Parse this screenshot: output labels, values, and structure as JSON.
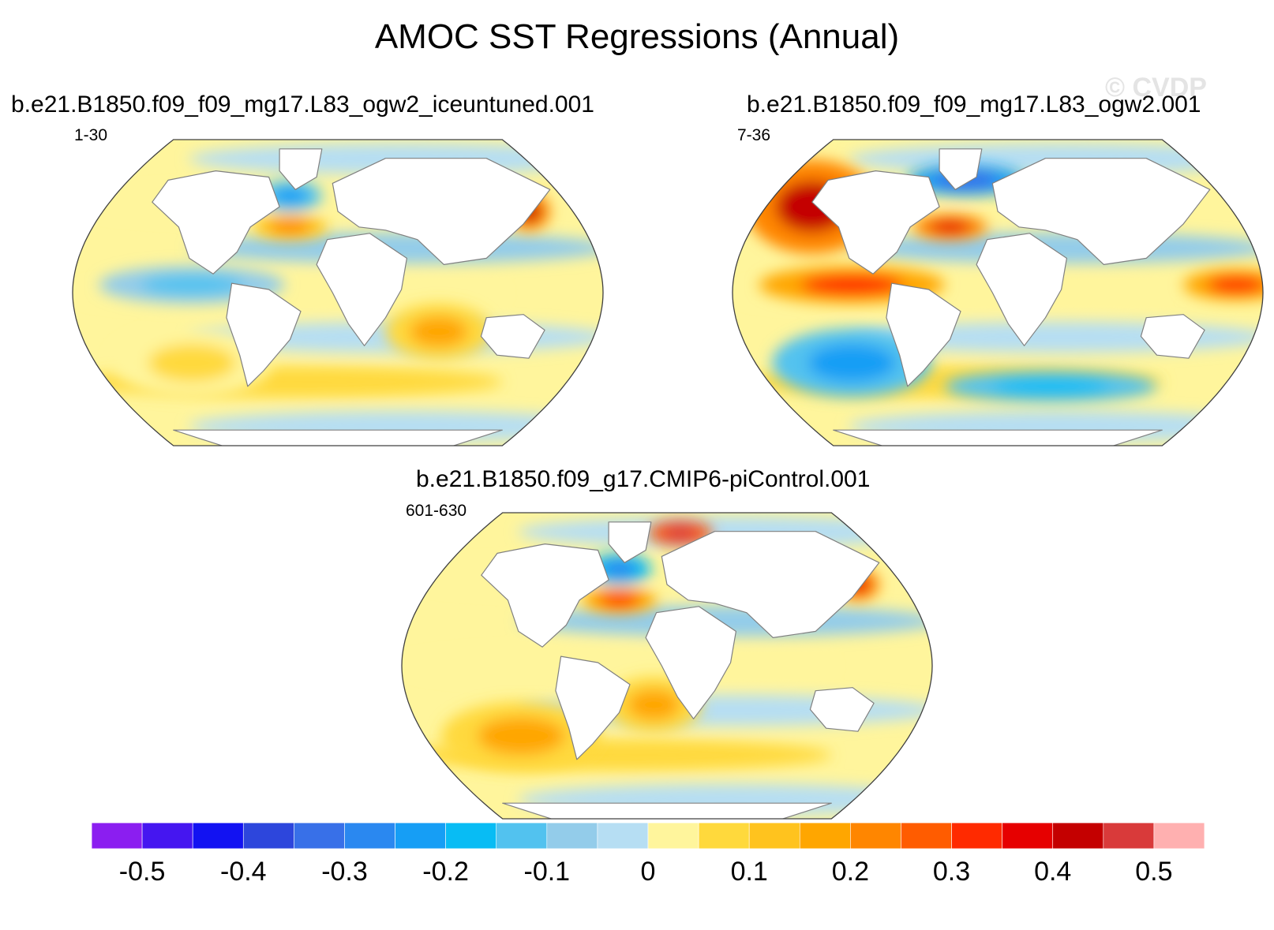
{
  "figure": {
    "title": "AMOC SST Regressions (Annual)",
    "watermark": "© CVDP"
  },
  "chart_data": {
    "type": "heatmap",
    "title": "AMOC SST Regressions (Annual)",
    "projection": "Robinson world map",
    "panels": [
      {
        "case": "b.e21.B1850.f09_f09_mg17.L83_ogw2_iceuntuned.001",
        "years": "1-30",
        "anomaly_features": [
          {
            "region": "Tropical eastern Pacific",
            "value": -0.15
          },
          {
            "region": "Labrador Sea",
            "value": -0.25
          },
          {
            "region": "Gulf Stream extension",
            "value": 0.2
          },
          {
            "region": "Kuroshio / Sea of Okhotsk",
            "value": 0.4
          },
          {
            "region": "South Indian Ocean",
            "value": 0.15
          },
          {
            "region": "Southeast Pacific",
            "value": 0.05
          }
        ]
      },
      {
        "case": "b.e21.B1850.f09_f09_mg17.L83_ogw2.001",
        "years": "7-36",
        "anomaly_features": [
          {
            "region": "Northeast Pacific",
            "value": 0.4
          },
          {
            "region": "Tropical eastern Pacific",
            "value": 0.3
          },
          {
            "region": "Southeast Pacific",
            "value": -0.25
          },
          {
            "region": "Subpolar North Atlantic",
            "value": -0.35
          },
          {
            "region": "Gulf Stream extension",
            "value": 0.35
          },
          {
            "region": "Southern Ocean (Atlantic/Indian)",
            "value": -0.2
          },
          {
            "region": "Western tropical Pacific",
            "value": 0.3
          }
        ]
      },
      {
        "case": "b.e21.B1850.f09_g17.CMIP6-piControl.001",
        "years": "601-630",
        "anomaly_features": [
          {
            "region": "Nordic / Barents Sea",
            "value": 0.45
          },
          {
            "region": "Labrador Sea",
            "value": -0.3
          },
          {
            "region": "Gulf Stream extension",
            "value": 0.3
          },
          {
            "region": "Sea of Okhotsk",
            "value": 0.35
          },
          {
            "region": "Southeast Pacific",
            "value": 0.15
          },
          {
            "region": "South Atlantic",
            "value": 0.15
          }
        ]
      }
    ],
    "colorbar": {
      "levels": [
        -0.55,
        -0.5,
        -0.45,
        -0.4,
        -0.35,
        -0.3,
        -0.25,
        -0.2,
        -0.15,
        -0.1,
        -0.05,
        0,
        0.05,
        0.1,
        0.15,
        0.2,
        0.25,
        0.3,
        0.35,
        0.4,
        0.45,
        0.5,
        0.55
      ],
      "colors": [
        "#8b1ef0",
        "#4516f0",
        "#1212f2",
        "#2d46dc",
        "#3870e8",
        "#2a88f0",
        "#169ef5",
        "#08bcf4",
        "#52c2ef",
        "#93ccea",
        "#b6def3",
        "#fff59c",
        "#ffd93c",
        "#ffc31e",
        "#ffa600",
        "#ff8600",
        "#ff5c00",
        "#ff2a00",
        "#e60000",
        "#c40000",
        "#d93a3a",
        "#ffb0b0"
      ],
      "tick_labels": [
        "-0.5",
        "-0.4",
        "-0.3",
        "-0.2",
        "-0.1",
        "0",
        "0.1",
        "0.2",
        "0.3",
        "0.4",
        "0.5"
      ],
      "tick_values": [
        -0.5,
        -0.4,
        -0.3,
        -0.2,
        -0.1,
        0,
        0.1,
        0.2,
        0.3,
        0.4,
        0.5
      ]
    }
  }
}
